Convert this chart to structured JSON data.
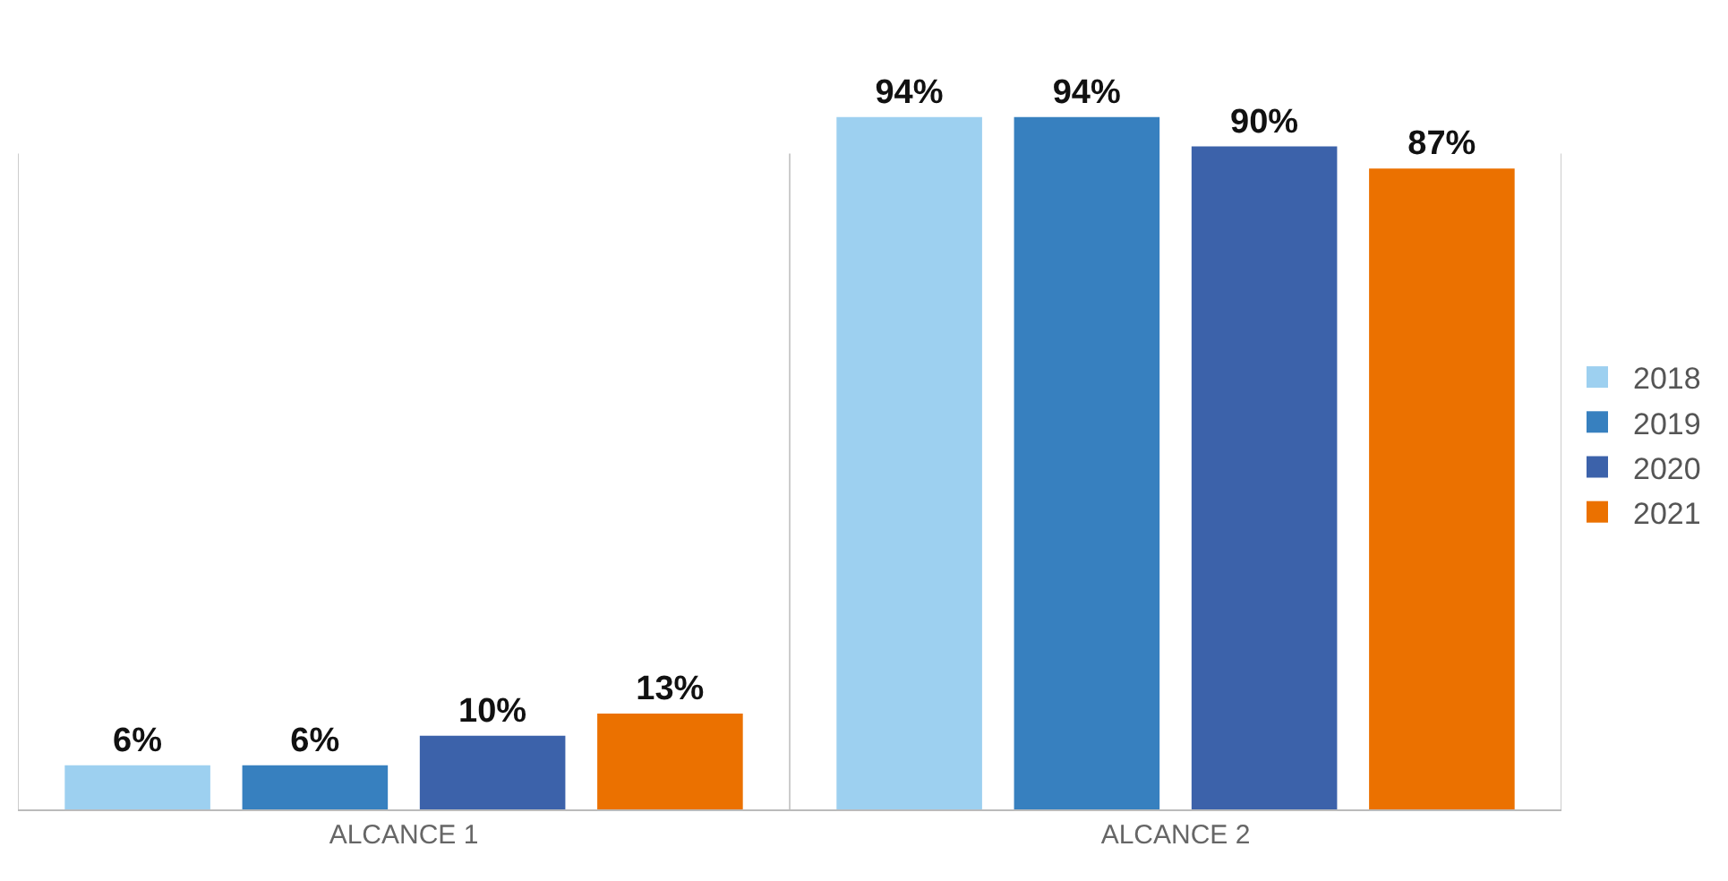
{
  "chart_data": {
    "type": "bar",
    "categories": [
      "ALCANCE 1",
      "ALCANCE 2"
    ],
    "series": [
      {
        "name": "2018",
        "color": "#9dd0f0",
        "values": [
          6,
          94
        ],
        "value_labels": [
          "6%",
          "94%"
        ]
      },
      {
        "name": "2019",
        "color": "#3780bf",
        "values": [
          6,
          94
        ],
        "value_labels": [
          "6%",
          "94%"
        ]
      },
      {
        "name": "2020",
        "color": "#3c62aa",
        "values": [
          10,
          90
        ],
        "value_labels": [
          "10%",
          "90%"
        ]
      },
      {
        "name": "2021",
        "color": "#eb7100",
        "values": [
          13,
          87
        ],
        "value_labels": [
          "13%",
          "87%"
        ]
      }
    ],
    "tick_labels": "x",
    "grid": "x",
    "legend": "right"
  }
}
